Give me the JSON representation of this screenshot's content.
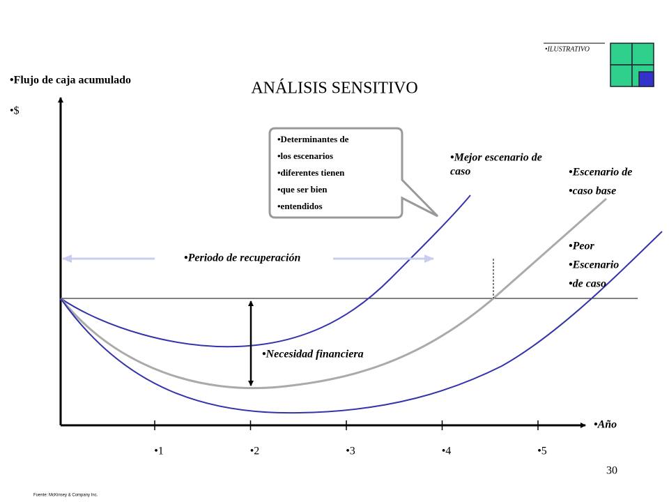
{
  "tag": "•ILUSTRATIVO",
  "title": "ANÁLISIS SENSITIVO",
  "y_axis": {
    "label": "•Flujo de caja acumulado",
    "unit": "•$"
  },
  "x_axis": {
    "label": "•Año",
    "ticks": [
      "•1",
      "•2",
      "•3",
      "•4",
      "•5"
    ]
  },
  "callout": {
    "lines": [
      "•Determinantes de",
      "•los escenarios",
      "•diferentes tienen",
      "•que ser bien",
      "•entendidos"
    ]
  },
  "curves": {
    "best": {
      "lines": [
        "•Mejor escenario de",
        "caso"
      ]
    },
    "base": {
      "lines": [
        "•Escenario de",
        "•caso base"
      ]
    },
    "worst": {
      "lines": [
        "•Peor",
        "•Escenario",
        "•de caso"
      ]
    }
  },
  "annotations": {
    "payback": "•Periodo de recuperación",
    "financing": "•Necesidad financiera"
  },
  "page_number": "30",
  "source": "Fuente:  McKinsey & Company Inc."
}
